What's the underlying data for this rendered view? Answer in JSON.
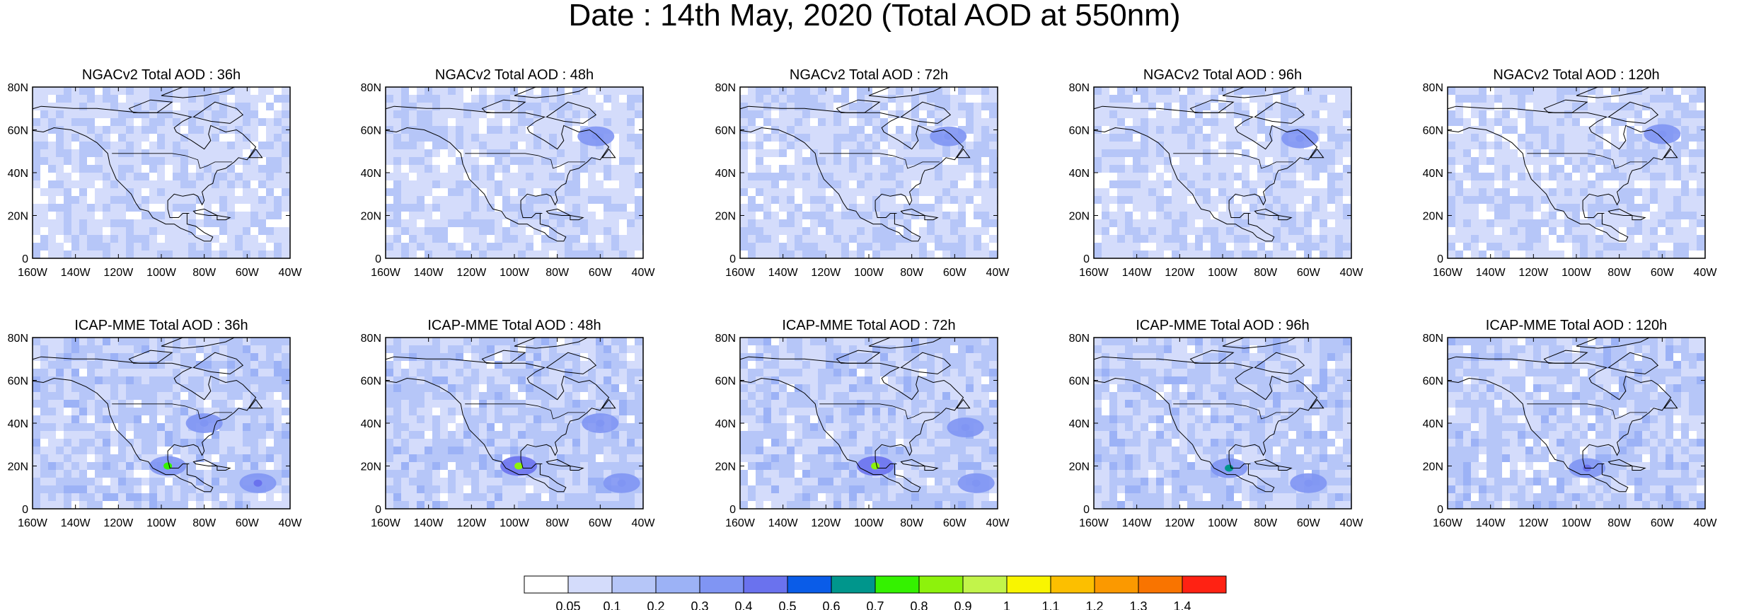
{
  "title": "Date : 14th May, 2020 (Total AOD at 550nm)",
  "panels": [
    {
      "title": "NGACv2 Total AOD : 36h"
    },
    {
      "title": "NGACv2 Total AOD : 48h"
    },
    {
      "title": "NGACv2 Total AOD : 72h"
    },
    {
      "title": "NGACv2 Total AOD : 96h"
    },
    {
      "title": "NGACv2 Total AOD : 120h"
    },
    {
      "title": "ICAP-MME Total AOD : 36h"
    },
    {
      "title": "ICAP-MME Total AOD : 48h"
    },
    {
      "title": "ICAP-MME Total AOD : 72h"
    },
    {
      "title": "ICAP-MME Total AOD : 96h"
    },
    {
      "title": "ICAP-MME Total AOD : 120h"
    }
  ],
  "chart_data": {
    "type": "heatmap",
    "title": "Date : 14th May, 2020 (Total AOD at 550nm)",
    "xlim": [
      -160,
      -40
    ],
    "ylim": [
      0,
      80
    ],
    "x_tick_labels": [
      "160W",
      "140W",
      "120W",
      "100W",
      "80W",
      "60W",
      "40W"
    ],
    "y_tick_labels": [
      "0",
      "20N",
      "40N",
      "60N",
      "80N"
    ],
    "colorbar": {
      "labels": [
        "0.05",
        "0.1",
        "0.2",
        "0.3",
        "0.4",
        "0.5",
        "0.6",
        "0.7",
        "0.8",
        "0.9",
        "1",
        "1.1",
        "1.2",
        "1.3",
        "1.4"
      ],
      "colors": [
        "#ffffff",
        "#d4dcfb",
        "#b6c6f8",
        "#9cb2f6",
        "#8095f3",
        "#6a72ee",
        "#0a5ce8",
        "#00968c",
        "#34f200",
        "#8df20c",
        "#c2f44a",
        "#f9f500",
        "#fcbf00",
        "#fb9900",
        "#f97400",
        "#ff2213"
      ]
    },
    "fields": [
      {
        "model": "NGACv2",
        "lead_hours": 36,
        "hotspots": []
      },
      {
        "model": "NGACv2",
        "lead_hours": 48,
        "hotspots": [
          [
            -62,
            57,
            0.3
          ]
        ]
      },
      {
        "model": "NGACv2",
        "lead_hours": 72,
        "hotspots": [
          [
            -63,
            57,
            0.3
          ]
        ]
      },
      {
        "model": "NGACv2",
        "lead_hours": 96,
        "hotspots": [
          [
            -64,
            56,
            0.35
          ]
        ]
      },
      {
        "model": "NGACv2",
        "lead_hours": 120,
        "hotspots": [
          [
            -60,
            58,
            0.3
          ]
        ]
      },
      {
        "model": "ICAP-MME",
        "lead_hours": 36,
        "hotspots": [
          [
            -97,
            20,
            0.75
          ],
          [
            -55,
            12,
            0.4
          ],
          [
            -80,
            40,
            0.3
          ]
        ]
      },
      {
        "model": "ICAP-MME",
        "lead_hours": 48,
        "hotspots": [
          [
            -98,
            20,
            0.8
          ],
          [
            -60,
            40,
            0.35
          ],
          [
            -50,
            12,
            0.35
          ]
        ]
      },
      {
        "model": "ICAP-MME",
        "lead_hours": 72,
        "hotspots": [
          [
            -97,
            20,
            0.8
          ],
          [
            -55,
            38,
            0.3
          ],
          [
            -50,
            12,
            0.3
          ]
        ]
      },
      {
        "model": "ICAP-MME",
        "lead_hours": 96,
        "hotspots": [
          [
            -97,
            19,
            0.65
          ],
          [
            -60,
            12,
            0.3
          ]
        ]
      },
      {
        "model": "ICAP-MME",
        "lead_hours": 120,
        "hotspots": [
          [
            -95,
            19,
            0.45
          ]
        ]
      }
    ]
  }
}
